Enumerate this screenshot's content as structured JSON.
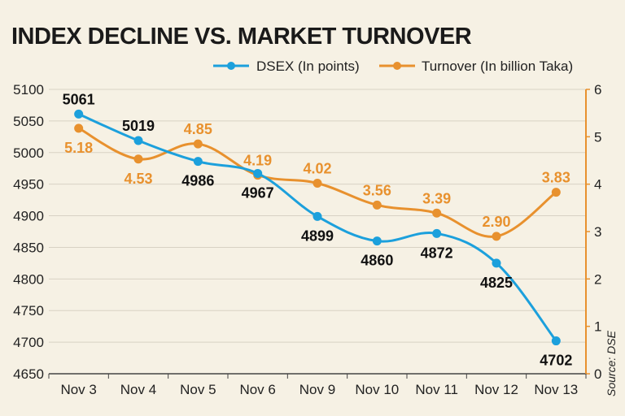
{
  "chart_data": {
    "type": "line",
    "title": "INDEX DECLINE VS. MARKET TURNOVER",
    "categories": [
      "Nov 3",
      "Nov 4",
      "Nov 5",
      "Nov 6",
      "Nov 9",
      "Nov 10",
      "Nov 11",
      "Nov 12",
      "Nov 13"
    ],
    "series": [
      {
        "name": "DSEX (In points)",
        "axis": "left",
        "color": "#1ca0dc",
        "values": [
          5061,
          5019,
          4986,
          4967,
          4899,
          4860,
          4872,
          4825,
          4702
        ],
        "labels": [
          "5061",
          "5019",
          "4986",
          "4967",
          "4899",
          "4860",
          "4872",
          "4825",
          "4702"
        ]
      },
      {
        "name": "Turnover (In billion Taka)",
        "axis": "right",
        "color": "#e8912e",
        "values": [
          5.18,
          4.53,
          4.85,
          4.19,
          4.02,
          3.56,
          3.39,
          2.9,
          3.83
        ],
        "labels": [
          "5.18",
          "4.53",
          "4.85",
          "4.19",
          "4.02",
          "3.56",
          "3.39",
          "2.90",
          "3.83"
        ]
      }
    ],
    "y_left": {
      "min": 4650,
      "max": 5100,
      "ticks": [
        "4650",
        "4700",
        "4750",
        "4800",
        "4850",
        "4900",
        "4950",
        "5000",
        "5050",
        "5100"
      ]
    },
    "y_right": {
      "min": 0,
      "max": 6,
      "ticks": [
        "0",
        "1",
        "2",
        "3",
        "4",
        "5",
        "6"
      ]
    },
    "legend_position": "top-right",
    "source": "Source: DSE",
    "axis_color": "#e8912e"
  }
}
